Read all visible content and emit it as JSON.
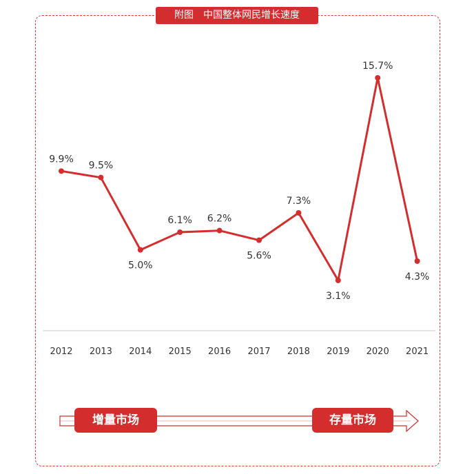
{
  "title": "附图　中国整体网民增长速度",
  "colors": {
    "accent": "#d42d2d",
    "axis": "#c8c8c8",
    "text": "#333333"
  },
  "chart_data": {
    "type": "line",
    "title": "附图　中国整体网民增长速度",
    "categories": [
      "2012",
      "2013",
      "2014",
      "2015",
      "2016",
      "2017",
      "2018",
      "2019",
      "2020",
      "2021"
    ],
    "series": [
      {
        "values": [
          9.9,
          9.5,
          5.0,
          6.1,
          6.2,
          5.6,
          7.3,
          3.1,
          15.7,
          4.3
        ],
        "labels": [
          "9.9%",
          "9.5%",
          "5.0%",
          "6.1%",
          "6.2%",
          "5.6%",
          "7.3%",
          "3.1%",
          "15.7%",
          "4.3%"
        ]
      }
    ],
    "xlabel": "",
    "ylabel": "",
    "unit": "%",
    "grid": false,
    "legend": "none"
  },
  "stages": {
    "left": "增量市场",
    "right": "存量市场"
  }
}
